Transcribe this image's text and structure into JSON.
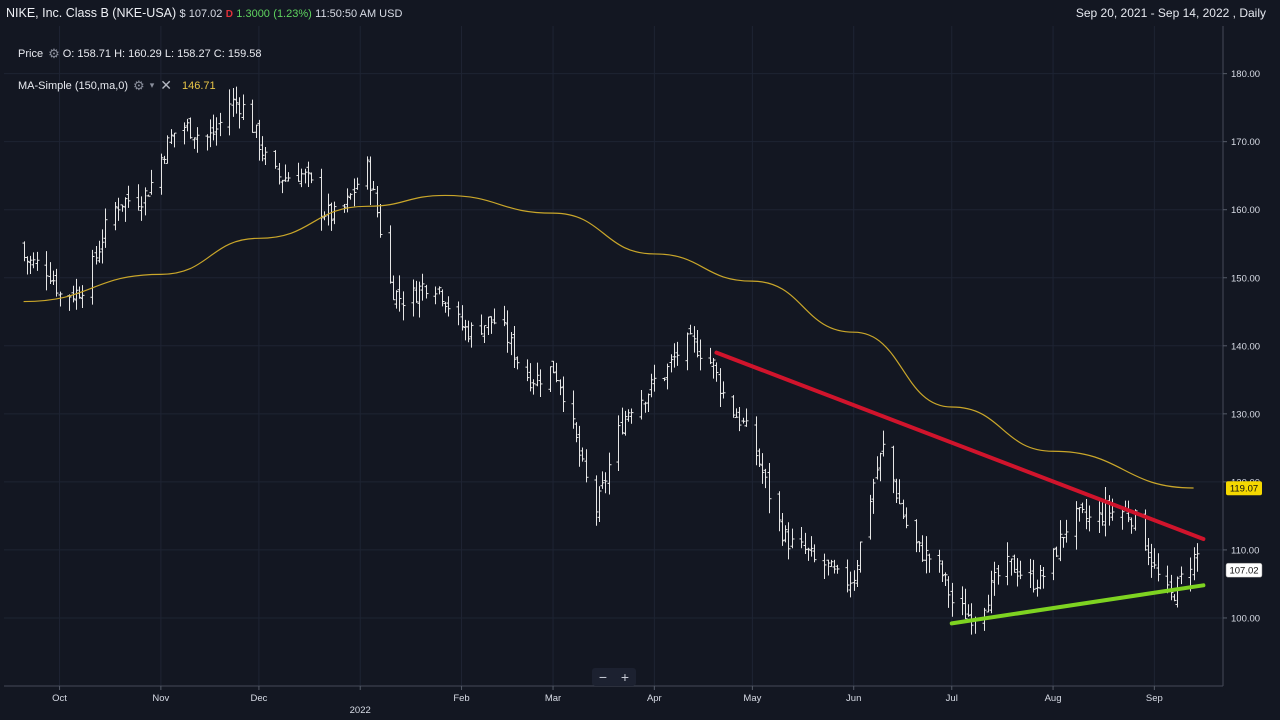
{
  "header": {
    "symbol": "NIKE, Inc. Class B (NKE-USA)",
    "price": "$ 107.02",
    "down_marker": "D",
    "change": "1.3000",
    "change_pct": "(1.23%)",
    "time": "11:50:50 AM USD",
    "date_range": "Sep 20, 2021 - Sep 14, 2022 , Daily"
  },
  "legend": {
    "price_label": "Price",
    "ohlc": "O: 158.71  H: 160.29  L: 158.27  C: 159.58",
    "ma_label": "MA-Simple (150,ma,0)",
    "ma_value": "146.71",
    "gear_icon": "gear-icon",
    "close_icon": "close-icon"
  },
  "zoom": {
    "minus": "−",
    "plus": "+"
  },
  "colors": {
    "background": "#131722",
    "bars": "#e6e6e6",
    "ma_line": "#c9a62a",
    "resistance": "#d0142c",
    "support": "#7ed321",
    "ma_tag": "#f5d800"
  },
  "chart_data": {
    "type": "ohlc",
    "title": "NIKE, Inc. Class B (NKE-USA)",
    "ylim": [
      90,
      187
    ],
    "y_ticks": [
      100,
      110,
      120,
      130,
      140,
      150,
      160,
      170,
      180
    ],
    "x_labels": [
      "Oct",
      "Nov",
      "Dec",
      "2022",
      "Feb",
      "Mar",
      "Apr",
      "May",
      "Jun",
      "Jul",
      "Aug",
      "Sep"
    ],
    "current_price_tag": "107.02",
    "ma_tag": "119.07",
    "price_path_monthly": [
      {
        "date": "2021-09-20",
        "close": 155
      },
      {
        "date": "2021-10-01",
        "close": 146
      },
      {
        "date": "2021-11-01",
        "close": 168
      },
      {
        "date": "2021-11-22",
        "close": 175
      },
      {
        "date": "2021-12-01",
        "close": 170
      },
      {
        "date": "2021-12-20",
        "close": 160
      },
      {
        "date": "2022-01-03",
        "close": 164
      },
      {
        "date": "2022-01-10",
        "close": 150
      },
      {
        "date": "2022-02-01",
        "close": 145
      },
      {
        "date": "2022-03-01",
        "close": 135
      },
      {
        "date": "2022-03-14",
        "close": 118
      },
      {
        "date": "2022-04-01",
        "close": 137
      },
      {
        "date": "2022-04-19",
        "close": 139
      },
      {
        "date": "2022-05-01",
        "close": 123
      },
      {
        "date": "2022-05-20",
        "close": 106
      },
      {
        "date": "2022-06-01",
        "close": 108
      },
      {
        "date": "2022-06-10",
        "close": 123
      },
      {
        "date": "2022-07-01",
        "close": 101
      },
      {
        "date": "2022-08-01",
        "close": 109
      },
      {
        "date": "2022-08-17",
        "close": 118
      },
      {
        "date": "2022-09-06",
        "close": 105
      },
      {
        "date": "2022-09-14",
        "close": 107
      }
    ],
    "ma_150": [
      {
        "date": "2021-09-20",
        "value": 146.5
      },
      {
        "date": "2021-11-01",
        "value": 150.5
      },
      {
        "date": "2021-12-01",
        "value": 155.8
      },
      {
        "date": "2022-01-03",
        "value": 160.5
      },
      {
        "date": "2022-01-27",
        "value": 162.1
      },
      {
        "date": "2022-03-01",
        "value": 159.5
      },
      {
        "date": "2022-04-01",
        "value": 153.5
      },
      {
        "date": "2022-05-01",
        "value": 149.5
      },
      {
        "date": "2022-06-01",
        "value": 142.0
      },
      {
        "date": "2022-07-01",
        "value": 131.0
      },
      {
        "date": "2022-08-01",
        "value": 124.5
      },
      {
        "date": "2022-09-13",
        "value": 119.1
      }
    ],
    "trendlines": [
      {
        "name": "resistance",
        "from": {
          "date": "2022-04-20",
          "value": 139
        },
        "to": {
          "date": "2022-09-16",
          "value": 111.6
        }
      },
      {
        "name": "support",
        "from": {
          "date": "2022-07-01",
          "value": 99.2
        },
        "to": {
          "date": "2022-09-16",
          "value": 104.8
        }
      }
    ]
  }
}
